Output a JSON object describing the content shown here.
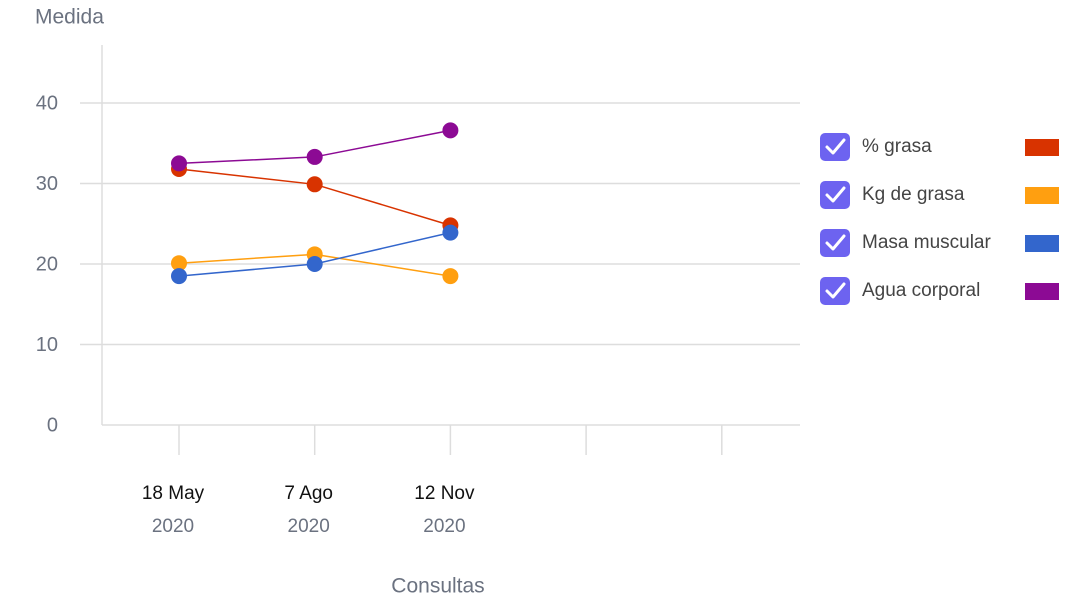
{
  "chart_data": {
    "type": "line",
    "y_label": "Medida",
    "x_label": "Consultas",
    "categories": [
      [
        "18 May",
        "2020"
      ],
      [
        "7 Ago",
        "2020"
      ],
      [
        "12 Nov",
        "2020"
      ],
      null,
      null
    ],
    "series": [
      {
        "name": "% grasa",
        "color": "#d83300",
        "values": [
          31.8,
          29.9,
          24.8,
          null,
          null
        ]
      },
      {
        "name": "Kg de grasa",
        "color": "#ff9f10",
        "values": [
          20.1,
          21.2,
          18.5,
          null,
          null
        ]
      },
      {
        "name": "Masa muscular",
        "color": "#3366cc",
        "values": [
          18.5,
          20.0,
          23.9,
          null,
          null
        ]
      },
      {
        "name": "Agua corporal",
        "color": "#8c0a94",
        "values": [
          32.5,
          33.3,
          36.6,
          null,
          null
        ]
      }
    ],
    "ylim": [
      0,
      40
    ],
    "yticks": [
      0,
      10,
      20,
      30,
      40
    ],
    "grid": true,
    "legend": "right"
  }
}
